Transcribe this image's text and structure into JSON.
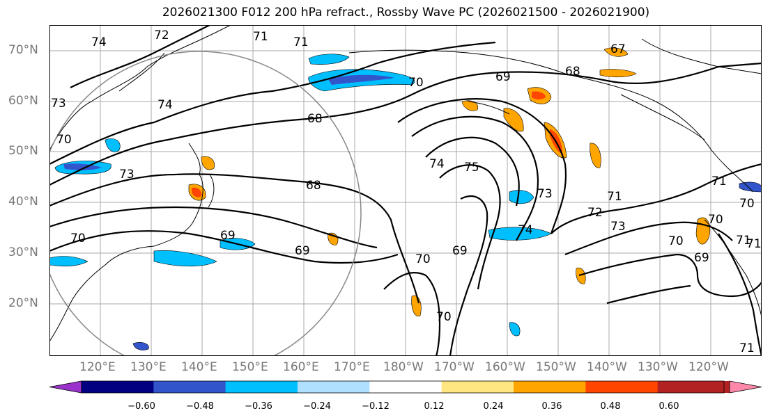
{
  "title": "2026021300 F012 200 hPa refract., Rossby Wave PC (2026021500 - 2026021900)",
  "lat_labels": [
    "70°N",
    "60°N",
    "50°N",
    "40°N",
    "30°N",
    "20°N"
  ],
  "lon_labels": [
    "120°E",
    "130°E",
    "140°E",
    "150°E",
    "160°E",
    "170°E",
    "180°W",
    "170°W",
    "160°W",
    "150°W",
    "140°W",
    "130°W",
    "120°W"
  ],
  "colorbar": {
    "colors": [
      "#9933cc",
      "#000080",
      "#3355cc",
      "#00bfff",
      "#b0e0ff",
      "#ffffff",
      "#ffe680",
      "#ffa500",
      "#ff4500",
      "#b22222",
      "#ff88aa"
    ],
    "ticks": [
      "−0.60",
      "−0.48",
      "−0.36",
      "−0.24",
      "−0.12",
      "0.12",
      "0.24",
      "0.36",
      "0.48",
      "0.60"
    ]
  },
  "contour_labels": [
    "74",
    "72",
    "71",
    "73",
    "74",
    "70",
    "69",
    "68",
    "67",
    "68",
    "73",
    "70",
    "69",
    "69",
    "68",
    "74",
    "75",
    "73",
    "72",
    "71",
    "73",
    "70",
    "69",
    "70",
    "71",
    "71",
    "74",
    "70",
    "70",
    "70",
    "70",
    "71",
    "71",
    "69",
    "71"
  ],
  "colors": {
    "land_line": "#000000",
    "grid": "#aaaaaa",
    "circle": "#888888"
  }
}
